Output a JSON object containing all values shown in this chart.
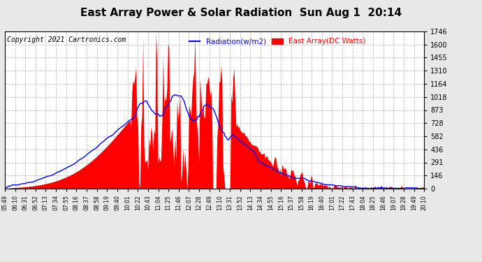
{
  "title": "East Array Power & Solar Radiation  Sun Aug 1  20:14",
  "copyright": "Copyright 2021 Cartronics.com",
  "legend_radiation": "Radiation(w/m2)",
  "legend_east_array": "East Array(DC Watts)",
  "yticks": [
    0.0,
    145.5,
    291.0,
    436.5,
    582.0,
    727.5,
    873.0,
    1018.5,
    1164.0,
    1309.5,
    1455.0,
    1600.5,
    1746.0
  ],
  "ymax": 1746.0,
  "ymin": 0.0,
  "bg_color": "#e8e8e8",
  "plot_bg_color": "#ffffff",
  "grid_color": "#bbbbbb",
  "fill_color": "#ff0000",
  "line_color": "#0000ff",
  "title_fontsize": 11,
  "copyright_fontsize": 7,
  "xtick_labels": [
    "05:49",
    "06:10",
    "06:31",
    "06:52",
    "07:13",
    "07:34",
    "07:55",
    "08:16",
    "08:37",
    "08:58",
    "09:19",
    "09:40",
    "10:01",
    "10:22",
    "10:43",
    "11:04",
    "11:25",
    "11:46",
    "12:07",
    "12:28",
    "12:49",
    "13:10",
    "13:31",
    "13:52",
    "14:13",
    "14:34",
    "14:55",
    "15:16",
    "15:37",
    "15:58",
    "16:19",
    "16:40",
    "17:01",
    "17:22",
    "17:43",
    "18:04",
    "18:25",
    "18:46",
    "19:07",
    "19:28",
    "19:49",
    "20:10"
  ]
}
